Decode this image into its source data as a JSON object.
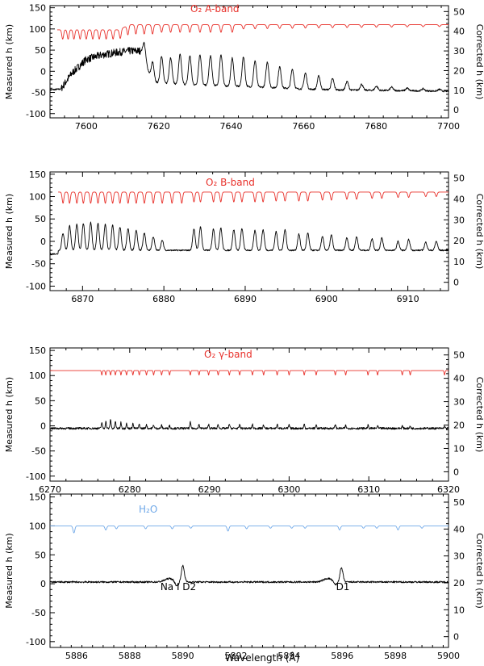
{
  "figure": {
    "xlabel": "Wavelength (Å)",
    "left_ylabel": "Measured h (km)",
    "right_ylabel": "Corrected h (km)"
  },
  "chart_data": [
    {
      "type": "line",
      "panel": "O2 A-band",
      "xlim": [
        7590,
        7700
      ],
      "xticks": [
        7600,
        7620,
        7640,
        7660,
        7680,
        7700
      ],
      "ylim_left": [
        -110,
        155
      ],
      "yticks_left": [
        -100,
        -50,
        0,
        50,
        100,
        150
      ],
      "ylim_right": [
        -4,
        53
      ],
      "yticks_right": [
        0,
        10,
        20,
        30,
        40,
        50
      ],
      "annotations": [
        {
          "text": "O₂ A-band",
          "color": "#e8302a"
        }
      ],
      "series": [
        {
          "color": "#e8302a",
          "baseline": 110,
          "x": [
            7592,
            7700
          ],
          "line_positions": [
            7593.5,
            7595,
            7596.6,
            7598.3,
            7600,
            7601.8,
            7603.6,
            7605.5,
            7607.4,
            7609.4,
            7611.5,
            7613.7,
            7616,
            7618.3,
            7620.8,
            7623.3,
            7625.9,
            7628.6,
            7631.4,
            7634.3,
            7637.2,
            7640.3,
            7643.4,
            7646.6,
            7650,
            7653.4,
            7656.9,
            7660.5,
            7664.2,
            7668,
            7672,
            7676,
            7680.1,
            7684.3,
            7688.6,
            7693,
            7697.5
          ],
          "absorption_band": {
            "from": 7593,
            "to": 7612,
            "level": 82
          }
        },
        {
          "color": "#000000",
          "start_level": -45,
          "x": [
            7590,
            7593,
            7596,
            7600,
            7604,
            7608,
            7612,
            7615,
            7616,
            7618,
            7620,
            7625,
            7630,
            7640,
            7650,
            7660,
            7670,
            7680,
            7690,
            7700
          ],
          "y": [
            -44,
            -42,
            -5,
            28,
            38,
            44,
            48,
            48,
            32,
            -22,
            -28,
            -30,
            -32,
            -35,
            -38,
            -42,
            -44,
            -45,
            -46,
            -47
          ],
          "peak_positions": [
            7616,
            7618.3,
            7620.8,
            7623.3,
            7625.9,
            7628.6,
            7631.4,
            7634.3,
            7637.2,
            7640.3,
            7643.4,
            7646.6,
            7650,
            7653.4,
            7656.9,
            7660.5,
            7664.2,
            7668,
            7672,
            7676,
            7680.1,
            7684.3,
            7688.6,
            7693,
            7697.5
          ],
          "peak_heights": [
            35,
            45,
            65,
            62,
            70,
            68,
            72,
            70,
            74,
            66,
            70,
            62,
            60,
            50,
            46,
            38,
            32,
            26,
            20,
            14,
            10,
            8,
            6,
            5,
            4
          ]
        }
      ]
    },
    {
      "type": "line",
      "panel": "O2 B-band",
      "xlim": [
        6866,
        6915
      ],
      "xticks": [
        6870,
        6880,
        6890,
        6900,
        6910
      ],
      "ylim_left": [
        -110,
        155
      ],
      "yticks_left": [
        -100,
        -50,
        0,
        50,
        100,
        150
      ],
      "ylim_right": [
        -4,
        53
      ],
      "yticks_right": [
        0,
        10,
        20,
        30,
        40,
        50
      ],
      "annotations": [
        {
          "text": "O₂ B-band",
          "color": "#e8302a"
        }
      ],
      "series": [
        {
          "color": "#e8302a",
          "baseline": 110,
          "x": [
            6867,
            6915
          ],
          "line_positions": [
            6867.6,
            6868.4,
            6869.3,
            6870.1,
            6871,
            6871.9,
            6872.8,
            6873.7,
            6874.6,
            6875.6,
            6876.6,
            6877.6,
            6878.7,
            6879.8,
            6881,
            6882.2,
            6883.7,
            6884.5,
            6886.1,
            6887,
            6888.6,
            6889.6,
            6891.2,
            6892.2,
            6893.8,
            6894.9,
            6896.6,
            6897.7,
            6899.5,
            6900.6,
            6902.5,
            6903.7,
            6905.6,
            6906.8,
            6908.8,
            6910.1,
            6912.2,
            6913.5
          ],
          "depths": [
            25,
            25,
            25,
            25,
            25,
            25,
            25,
            25,
            25,
            25,
            25,
            25,
            25,
            25,
            25,
            25,
            22,
            22,
            22,
            22,
            22,
            22,
            22,
            22,
            20,
            20,
            20,
            20,
            18,
            18,
            16,
            16,
            14,
            14,
            12,
            12,
            10,
            10
          ]
        },
        {
          "color": "#000000",
          "baseline": -20,
          "start": {
            "x": 6866,
            "y": -28
          },
          "peak_positions": [
            6867.6,
            6868.4,
            6869.3,
            6870.1,
            6871,
            6871.9,
            6872.8,
            6873.7,
            6874.6,
            6875.6,
            6876.6,
            6877.6,
            6878.7,
            6879.8,
            6883.7,
            6884.5,
            6886.1,
            6887,
            6888.6,
            6889.6,
            6891.2,
            6892.2,
            6893.8,
            6894.9,
            6896.6,
            6897.7,
            6899.5,
            6900.6,
            6902.5,
            6903.7,
            6905.6,
            6906.8,
            6908.8,
            6910.1,
            6912.2,
            6913.5
          ],
          "peak_heights": [
            38,
            55,
            58,
            60,
            62,
            60,
            58,
            56,
            52,
            48,
            44,
            38,
            30,
            22,
            48,
            52,
            48,
            50,
            46,
            48,
            44,
            46,
            42,
            46,
            36,
            38,
            30,
            34,
            28,
            30,
            26,
            28,
            20,
            24,
            18,
            20
          ]
        }
      ]
    },
    {
      "type": "line",
      "panel": "O2 gamma-band",
      "xlim": [
        6270,
        6320
      ],
      "xticks": [
        6270,
        6280,
        6290,
        6300,
        6310,
        6320
      ],
      "ylim_left": [
        -110,
        155
      ],
      "yticks_left": [
        -100,
        -50,
        0,
        50,
        100,
        150
      ],
      "ylim_right": [
        -4,
        53
      ],
      "yticks_right": [
        0,
        10,
        20,
        30,
        40,
        50
      ],
      "annotations": [
        {
          "text": "O₂ γ-band",
          "color": "#e8302a"
        }
      ],
      "series": [
        {
          "color": "#e8302a",
          "baseline": 110,
          "x": [
            6270,
            6320
          ],
          "line_positions": [
            6276.5,
            6277,
            6277.6,
            6278.2,
            6278.9,
            6279.6,
            6280.4,
            6281.2,
            6282.1,
            6283,
            6284,
            6285,
            6287.6,
            6288.7,
            6289.9,
            6291.1,
            6292.5,
            6293.8,
            6295.4,
            6296.8,
            6298.5,
            6300,
            6301.9,
            6303.4,
            6305.8,
            6307.1,
            6309.9,
            6311.1,
            6314.2,
            6315.2,
            6319.5
          ],
          "depth": 9
        },
        {
          "color": "#000000",
          "baseline": -5,
          "x": [
            6270,
            6320
          ],
          "peak_positions": [
            6276.5,
            6277,
            6277.6,
            6278.2,
            6278.9,
            6279.6,
            6280.4,
            6281.2,
            6282.1,
            6283,
            6284,
            6285,
            6287.6,
            6288.7,
            6289.9,
            6291.1,
            6292.5,
            6293.8,
            6295.4,
            6296.8,
            6298.5,
            6300,
            6301.9,
            6303.4,
            6305.8,
            6307.1,
            6309.9,
            6311.1,
            6314.2,
            6315.2,
            6319.5
          ],
          "peak_heights": [
            12,
            14,
            18,
            14,
            12,
            10,
            10,
            8,
            8,
            7,
            6,
            6,
            12,
            8,
            8,
            8,
            9,
            7,
            8,
            7,
            8,
            7,
            8,
            7,
            8,
            6,
            6,
            5,
            5,
            4,
            4
          ]
        }
      ]
    },
    {
      "type": "line",
      "panel": "H2O",
      "xlim": [
        5885,
        5900
      ],
      "xticks": [
        5886,
        5888,
        5890,
        5892,
        5894,
        5896,
        5898,
        5900
      ],
      "ylim_left": [
        -110,
        155
      ],
      "yticks_left": [
        -100,
        -50,
        0,
        50,
        100,
        150
      ],
      "ylim_right": [
        -4,
        53
      ],
      "yticks_right": [
        0,
        10,
        20,
        30,
        40,
        50
      ],
      "annotations": [
        {
          "text": "H₂O",
          "color": "#6fa8e8"
        },
        {
          "text": "Na I D2",
          "color": "#000000"
        },
        {
          "text": "D1",
          "color": "#000000"
        }
      ],
      "series": [
        {
          "color": "#6fa8e8",
          "baseline": 100,
          "x": [
            5885,
            5900
          ],
          "line_positions": [
            5885.9,
            5887.1,
            5887.5,
            5888.6,
            5889.6,
            5890.3,
            5891.7,
            5892.4,
            5893.3,
            5894.1,
            5894.6,
            5895.9,
            5896.8,
            5897.3,
            5898.1,
            5899
          ],
          "depths": [
            12,
            7,
            5,
            5,
            5,
            4,
            9,
            5,
            4,
            4,
            4,
            7,
            4,
            4,
            7,
            4
          ]
        },
        {
          "color": "#000000",
          "baseline": 3,
          "x": [
            5885,
            5900
          ],
          "features": [
            {
              "x": 5889.95,
              "peak": 28,
              "dip": -8
            },
            {
              "x": 5895.92,
              "peak": 24,
              "dip": -6
            }
          ]
        }
      ]
    }
  ]
}
